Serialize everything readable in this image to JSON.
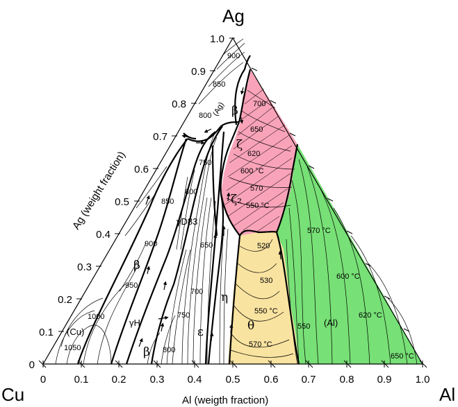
{
  "corners": {
    "top": "Ag",
    "left": "Cu",
    "right": "Al"
  },
  "axes": {
    "bottom_title": "Al (weigth fraction)",
    "left_title": "Ag (weight fraction)",
    "bottom_ticks": [
      "0",
      "0.1",
      "0.2",
      "0.3",
      "0.4",
      "0.5",
      "0.6",
      "0.7",
      "0.8",
      "0.9",
      "1.0"
    ],
    "left_ticks": [
      "0",
      "0.1",
      "0.2",
      "0.3",
      "0.4",
      "0.5",
      "0.6",
      "0.7",
      "0.8",
      "0.9",
      "1.0"
    ]
  },
  "phases": {
    "cu": "(Cu)",
    "beta_upper": "β",
    "beta_lower": "β",
    "gamma_h": "γH",
    "gamma_d83": "γD83",
    "epsilon": "ε",
    "eta": "η",
    "theta": "θ",
    "zeta": "ζ",
    "zeta2": "ζ₂",
    "beta_ag": "β",
    "al": "(Al)",
    "ag": "(Ag)"
  },
  "isotherms": {
    "i900top": "900",
    "i850top": "850",
    "i800top": "800",
    "i750a": "750",
    "i800b": "800",
    "i850b": "850",
    "i900b": "900",
    "i950": "950",
    "i1000": "1000",
    "i1050": "1050",
    "i650a": "650",
    "i700a": "700",
    "i750b": "750",
    "i800c": "800",
    "z700": "700",
    "z650": "650",
    "z620": "620",
    "z600": "600 °C",
    "z570": "570",
    "z550": "550 °C",
    "t520": "520",
    "t530": "530",
    "t550": "550 °C",
    "t570": "570 °C",
    "a570": "570 °C",
    "a600": "600 °C",
    "a550": "550",
    "a620": "620 °C",
    "a650": "650 °C"
  },
  "colors": {
    "pink": "#f9a3b9",
    "green": "#77e076",
    "yellow": "#f9e3a0"
  }
}
